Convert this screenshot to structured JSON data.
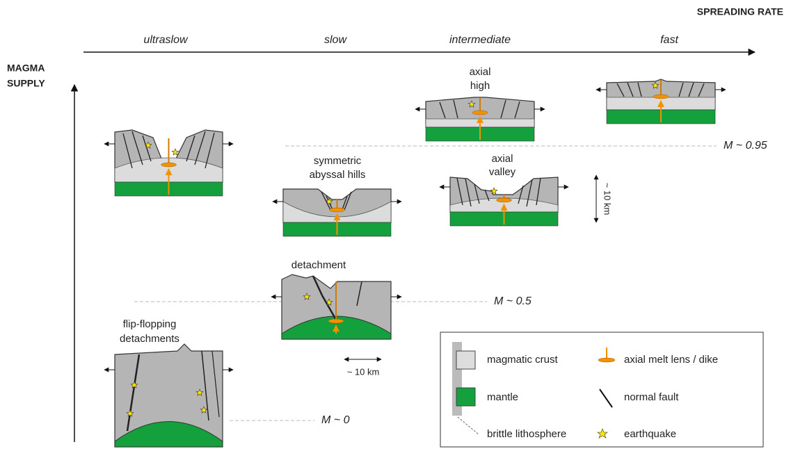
{
  "header": {
    "spreading_rate": "SPREADING RATE",
    "magma_supply": [
      "MAGMA",
      "SUPPLY"
    ]
  },
  "rates": [
    "ultraslow",
    "slow",
    "intermediate",
    "fast"
  ],
  "panels": {
    "axial_high": [
      "axial",
      "high"
    ],
    "abyssal_hills": [
      "symmetric",
      "abyssal hills"
    ],
    "axial_valley": [
      "axial",
      "valley"
    ],
    "detachment": "detachment",
    "flip_flopping": [
      "flip-flopping",
      "detachments"
    ]
  },
  "levels": [
    "M ~ 0.95",
    "M ~ 0.5",
    "M ~ 0"
  ],
  "scale_bars": [
    "~ 10 km",
    "~ 10 km"
  ],
  "legend": [
    "magmatic crust",
    "axial melt lens / dike",
    "mantle",
    "normal fault",
    "brittle lithosphere",
    "earthquake"
  ]
}
